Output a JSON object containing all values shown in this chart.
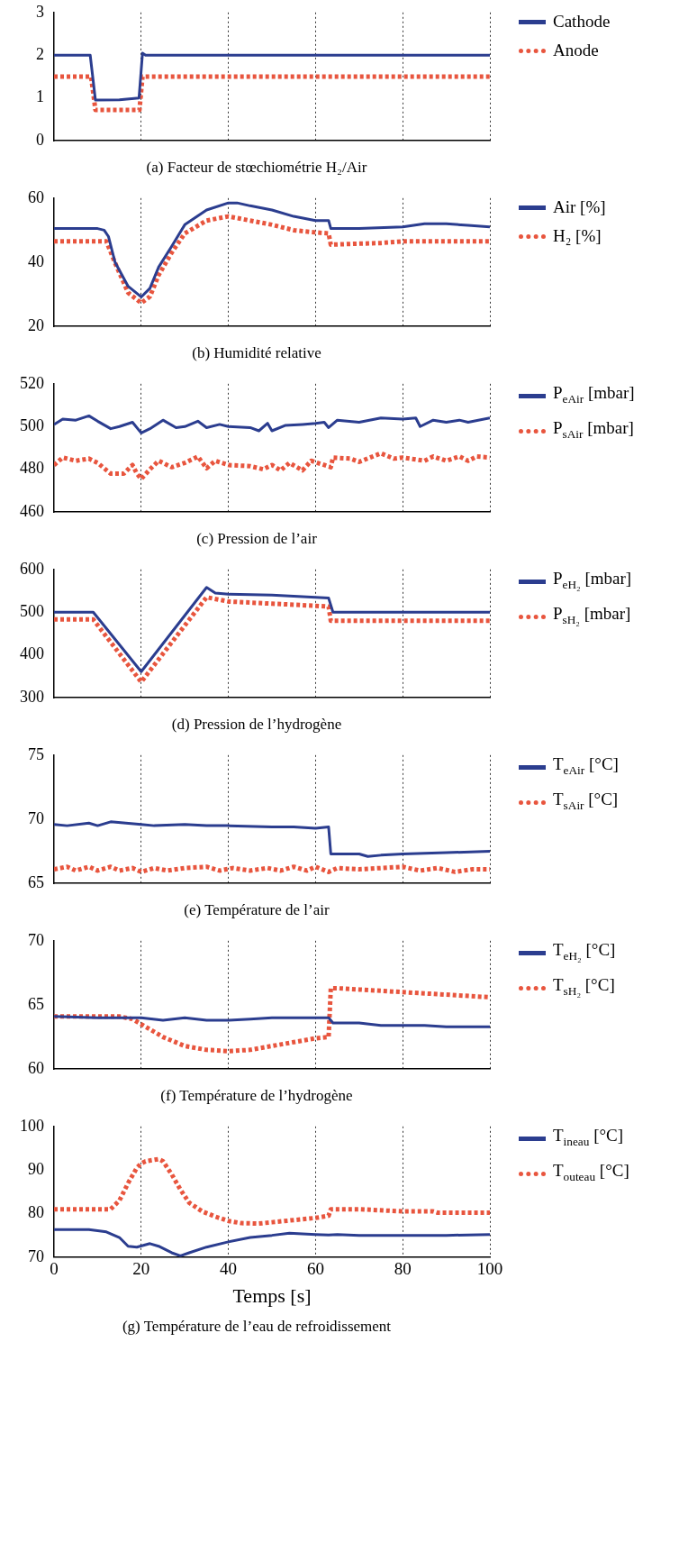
{
  "chart_data": [
    {
      "type": "line",
      "title": "(a) Facteur de stœchiométrie H₂/Air",
      "xlim": [
        0,
        100
      ],
      "xticks": [
        0,
        20,
        40,
        60,
        80,
        100
      ],
      "ylim": [
        0,
        3
      ],
      "yticks": [
        0,
        1,
        2,
        3
      ],
      "grid": "x",
      "legend": "top right",
      "tick_labels": "y",
      "marker": "none",
      "series": [
        {
          "name": "Cathode",
          "color": "#2b3d8f",
          "line_style": "solid",
          "x": [
            0,
            8.3,
            9.5,
            15,
            19.5,
            20.3,
            21,
            100
          ],
          "values": [
            2,
            2,
            0.95,
            0.96,
            1.0,
            2.05,
            2.0,
            2.0
          ]
        },
        {
          "name": "Anode",
          "color": "#e8553e",
          "line_style": "dotted",
          "x": [
            0,
            8.5,
            9.5,
            19.6,
            20.3,
            100
          ],
          "values": [
            1.5,
            1.5,
            0.72,
            0.72,
            1.5,
            1.5
          ]
        }
      ]
    },
    {
      "type": "line",
      "title": "(b) Humidité relative",
      "xlim": [
        0,
        100
      ],
      "xticks": [
        0,
        20,
        40,
        60,
        80,
        100
      ],
      "ylim": [
        20,
        60
      ],
      "yticks": [
        20,
        40,
        60
      ],
      "grid": "x",
      "legend": "top right",
      "tick_labels": "y",
      "marker": "none",
      "series": [
        {
          "name": "Air [%]",
          "color": "#2b3d8f",
          "line_style": "solid",
          "x": [
            0,
            10,
            11.5,
            12.5,
            14,
            17,
            20,
            22,
            24,
            27,
            30,
            35,
            40,
            42,
            45,
            50,
            55,
            60,
            63,
            63.5,
            65,
            70,
            80,
            85,
            90,
            95,
            100
          ],
          "values": [
            50.5,
            50.5,
            50,
            48,
            40,
            32.5,
            29.2,
            31.9,
            38.5,
            45,
            51.7,
            56.3,
            58.5,
            58.5,
            57.6,
            56.3,
            54.3,
            53,
            53,
            50.5,
            50.5,
            50.5,
            51,
            52,
            52,
            51.5,
            51
          ]
        },
        {
          "name": "H₂ [%]",
          "color": "#e8553e",
          "line_style": "dotted",
          "x": [
            0,
            12,
            14,
            17,
            20,
            22,
            24,
            27,
            30,
            35,
            40,
            45,
            50,
            55,
            60,
            63,
            63.5,
            70,
            75,
            80,
            100
          ],
          "values": [
            46.5,
            46.5,
            39.8,
            30.5,
            27.3,
            29.3,
            36,
            43,
            49,
            53,
            54.3,
            53,
            51.7,
            50,
            49.3,
            49,
            45.5,
            45.8,
            46,
            46.5,
            46.5
          ]
        }
      ]
    },
    {
      "type": "line",
      "title": "(c) Pression de l’air",
      "xlim": [
        0,
        100
      ],
      "xticks": [
        0,
        20,
        40,
        60,
        80,
        100
      ],
      "ylim": [
        460,
        520
      ],
      "yticks": [
        460,
        480,
        500,
        520
      ],
      "grid": "x",
      "legend": "top right",
      "tick_labels": "y",
      "marker": "none",
      "series": [
        {
          "name": "P$_{eAir}$ [mbar]",
          "color": "#2b3d8f",
          "line_style": "solid",
          "x": [
            0,
            2,
            5,
            8,
            10,
            13,
            15,
            18,
            20,
            22,
            25,
            28,
            30,
            33,
            35,
            38,
            40,
            45,
            47,
            49,
            50,
            53,
            57,
            60,
            62,
            63,
            65,
            70,
            75,
            80,
            83,
            84,
            87,
            90,
            93,
            95,
            100
          ],
          "values": [
            501,
            503.5,
            503,
            505,
            502.5,
            499,
            500,
            502,
            497,
            499,
            503,
            499.5,
            500,
            502.5,
            499.5,
            501,
            500,
            499.5,
            498,
            501.5,
            498,
            500.5,
            501,
            501.5,
            502,
            499.5,
            503,
            502,
            504,
            503.5,
            504,
            500,
            503,
            502,
            503,
            502,
            504
          ]
        },
        {
          "name": "P$_{sAir}$ [mbar]",
          "color": "#e8553e",
          "line_style": "dotted",
          "x": [
            0,
            2,
            5,
            8,
            10,
            13,
            16,
            18,
            19,
            20,
            22,
            24,
            27,
            30,
            33,
            35,
            37,
            40,
            45,
            48,
            50,
            52,
            54,
            57,
            59,
            62,
            63.5,
            64,
            68,
            70,
            75,
            78,
            80,
            85,
            87,
            90,
            93,
            95,
            97,
            100
          ],
          "values": [
            482,
            485.5,
            484,
            485,
            483,
            478,
            478,
            482,
            478,
            475.5,
            480,
            484,
            481,
            483,
            486,
            480.5,
            484,
            482,
            481.5,
            480,
            482,
            479.5,
            483,
            479.5,
            484,
            482,
            481,
            485.5,
            485,
            483.5,
            487.5,
            485,
            485.5,
            484,
            486,
            484,
            486,
            484,
            486,
            485.5
          ]
        }
      ]
    },
    {
      "type": "line",
      "title": "(d) Pression de l’hydrogène",
      "xlim": [
        0,
        100
      ],
      "xticks": [
        0,
        20,
        40,
        60,
        80,
        100
      ],
      "ylim": [
        300,
        600
      ],
      "yticks": [
        300,
        400,
        500,
        600
      ],
      "grid": "x",
      "legend": "top right",
      "tick_labels": "y",
      "marker": "none",
      "series": [
        {
          "name": "P$_{eH₂}$ [mbar]",
          "color": "#2b3d8f",
          "line_style": "solid",
          "x": [
            0,
            9,
            20,
            35,
            37,
            40,
            50,
            60,
            63,
            64,
            100
          ],
          "values": [
            500,
            500,
            361,
            558,
            545,
            542,
            540,
            535,
            533,
            500,
            500
          ]
        },
        {
          "name": "P$_{sH₂}$ [mbar]",
          "color": "#e8553e",
          "line_style": "dotted",
          "x": [
            0,
            9,
            20,
            35,
            40,
            50,
            60,
            63,
            63.5,
            100
          ],
          "values": [
            483,
            483,
            337,
            535,
            525,
            520,
            515,
            513,
            480,
            480
          ]
        }
      ]
    },
    {
      "type": "line",
      "title": "(e) Température de l’air",
      "xlim": [
        0,
        100
      ],
      "xticks": [
        0,
        20,
        40,
        60,
        80,
        100
      ],
      "ylim": [
        65,
        75
      ],
      "yticks": [
        65,
        70,
        75
      ],
      "grid": "x",
      "legend": "top right",
      "tick_labels": "y",
      "marker": "none",
      "series": [
        {
          "name": "T$_{eAir}$ [°C]",
          "color": "#2b3d8f",
          "line_style": "solid",
          "x": [
            0,
            3,
            8,
            10,
            13,
            20,
            23,
            30,
            35,
            40,
            50,
            55,
            60,
            63,
            63.5,
            70,
            72,
            75,
            80,
            90,
            100
          ],
          "values": [
            69.6,
            69.5,
            69.7,
            69.5,
            69.8,
            69.6,
            69.5,
            69.6,
            69.5,
            69.5,
            69.4,
            69.4,
            69.3,
            69.4,
            67.3,
            67.3,
            67.1,
            67.2,
            67.3,
            67.4,
            67.5
          ]
        },
        {
          "name": "T$_{sAir}$ [°C]",
          "color": "#e8553e",
          "line_style": "dotted",
          "x": [
            0,
            3,
            5,
            8,
            10,
            13,
            15,
            18,
            20,
            23,
            26,
            30,
            35,
            38,
            41,
            45,
            49,
            52,
            55,
            58,
            60,
            63,
            65,
            70,
            75,
            80,
            84,
            88,
            92,
            96,
            100
          ],
          "values": [
            66.1,
            66.3,
            66.0,
            66.3,
            66.0,
            66.3,
            66.0,
            66.2,
            65.9,
            66.2,
            66.0,
            66.2,
            66.3,
            66.0,
            66.2,
            66.0,
            66.2,
            66.0,
            66.3,
            66.0,
            66.3,
            65.9,
            66.2,
            66.1,
            66.2,
            66.3,
            66.0,
            66.2,
            65.9,
            66.1,
            66.1
          ]
        }
      ]
    },
    {
      "type": "line",
      "title": "(f) Température de l’hydrogène",
      "xlim": [
        0,
        100
      ],
      "xticks": [
        0,
        20,
        40,
        60,
        80,
        100
      ],
      "ylim": [
        60,
        70
      ],
      "yticks": [
        60,
        65,
        70
      ],
      "grid": "x",
      "legend": "top right",
      "tick_labels": "y",
      "marker": "none",
      "series": [
        {
          "name": "T$_{eH₂}$ [°C]",
          "color": "#2b3d8f",
          "line_style": "solid",
          "x": [
            0,
            10,
            18,
            20,
            25,
            30,
            35,
            40,
            45,
            50,
            55,
            60,
            63,
            64,
            70,
            75,
            80,
            85,
            90,
            100
          ],
          "values": [
            64.1,
            64.0,
            64.0,
            64.0,
            63.8,
            64.0,
            63.8,
            63.8,
            63.9,
            64.0,
            64.0,
            64.0,
            64.0,
            63.6,
            63.6,
            63.4,
            63.4,
            63.4,
            63.3,
            63.3
          ]
        },
        {
          "name": "T$_{sH₂}$ [°C]",
          "color": "#e8553e",
          "line_style": "dotted",
          "x": [
            0,
            15,
            18,
            20,
            25,
            30,
            35,
            40,
            45,
            50,
            55,
            60,
            63,
            63.5,
            65,
            70,
            80,
            90,
            100
          ],
          "values": [
            64.1,
            64.1,
            63.9,
            63.5,
            62.5,
            61.8,
            61.5,
            61.4,
            61.5,
            61.8,
            62.1,
            62.4,
            62.5,
            66.3,
            66.3,
            66.2,
            66.0,
            65.8,
            65.6
          ]
        }
      ]
    },
    {
      "type": "line",
      "title": "(g) Température de l’eau de refroidissement",
      "xlabel": "Temps [s]",
      "xlim": [
        0,
        100
      ],
      "xticks": [
        0,
        20,
        40,
        60,
        80,
        100
      ],
      "ylim": [
        70,
        100
      ],
      "yticks": [
        70,
        80,
        90,
        100
      ],
      "grid": "x",
      "legend": "top right",
      "marker": "none",
      "series": [
        {
          "name": "T$_{ineau}$ [°C]",
          "color": "#2b3d8f",
          "line_style": "solid",
          "x": [
            0,
            8,
            12,
            15,
            17,
            19,
            22,
            24,
            27,
            29,
            31,
            35,
            40,
            45,
            50,
            54,
            60,
            63,
            65,
            70,
            80,
            90,
            100
          ],
          "values": [
            76.3,
            76.3,
            75.8,
            74.5,
            72.5,
            72.3,
            73.1,
            72.5,
            71,
            70.3,
            71,
            72.3,
            73.5,
            74.5,
            75,
            75.5,
            75.2,
            75.1,
            75.2,
            75,
            75,
            75,
            75.2
          ]
        },
        {
          "name": "T$_{outeau}$ [°C]",
          "color": "#e8553e",
          "line_style": "dotted",
          "x": [
            0,
            13,
            15,
            17,
            19,
            20,
            21,
            24,
            25,
            27,
            29,
            31,
            34,
            37,
            40,
            43,
            47,
            50,
            55,
            60,
            63,
            63.5,
            70,
            80,
            87,
            88,
            100
          ],
          "values": [
            81,
            81,
            83,
            87,
            90.5,
            91.5,
            92,
            92.5,
            92,
            89,
            85.5,
            82.5,
            80.5,
            79.3,
            78.3,
            77.8,
            77.7,
            78,
            78.5,
            79,
            79.5,
            81,
            81,
            80.5,
            80.5,
            80.2,
            80.2
          ]
        }
      ]
    }
  ]
}
